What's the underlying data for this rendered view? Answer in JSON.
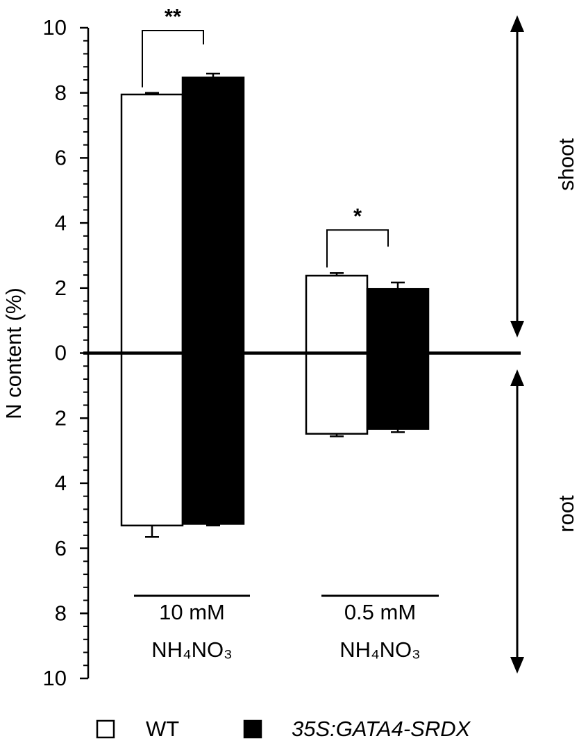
{
  "chart_data": {
    "type": "bar",
    "y_label": "N content (%)",
    "categories": [
      [
        "10 mM",
        "NH₄NO₃"
      ],
      [
        "0.5 mM",
        "NH₄NO₃"
      ]
    ],
    "series": [
      {
        "name": "WT",
        "color": "#ffffff",
        "values": [
          7.95,
          2.38
        ],
        "errors": [
          0.05,
          0.08
        ],
        "root_values": [
          -5.3,
          -2.48
        ],
        "root_errors": [
          0.35,
          0.08
        ]
      },
      {
        "name": "35S:GATA4-SRDX",
        "color": "#000000",
        "values": [
          8.47,
          1.97
        ],
        "errors": [
          0.12,
          0.2
        ],
        "root_values": [
          -5.25,
          -2.33
        ],
        "root_errors": [
          0.05,
          0.1
        ]
      }
    ],
    "ylim": [
      -10,
      10
    ],
    "yticks": [
      {
        "value": -10,
        "label": "10"
      },
      {
        "value": -8,
        "label": "8"
      },
      {
        "value": -6,
        "label": "6"
      },
      {
        "value": -4,
        "label": "4"
      },
      {
        "value": -2,
        "label": "2"
      },
      0,
      2,
      4,
      6,
      8,
      10
    ],
    "annotations": [
      {
        "text": "**",
        "category": 0
      },
      {
        "text": "*",
        "category": 1
      }
    ],
    "side_labels": [
      "shoot",
      "root"
    ]
  }
}
